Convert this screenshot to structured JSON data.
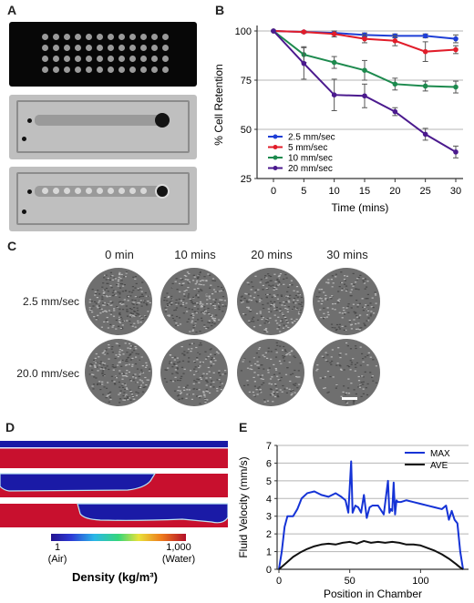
{
  "panels": {
    "a": "A",
    "b": "B",
    "c": "C",
    "d": "D",
    "e": "E"
  },
  "panel_c": {
    "columns": [
      "0 min",
      "10 mins",
      "20 mins",
      "30 mins"
    ],
    "rows": [
      "2.5 mm/sec",
      "20.0 mm/sec"
    ]
  },
  "panel_d": {
    "colorbar_min": "1",
    "colorbar_max": "1,000",
    "colorbar_min_label": "(Air)",
    "colorbar_max_label": "(Water)",
    "colorbar_title": "Density (kg/m³)",
    "colors": {
      "air": "#1a1aa6",
      "water": "#c8102e"
    }
  },
  "chart_data": [
    {
      "id": "B",
      "type": "line",
      "xlabel": "Time (mins)",
      "ylabel": "% Cell Retention",
      "x": [
        0,
        5,
        10,
        15,
        20,
        25,
        30
      ],
      "xlim": [
        0,
        30
      ],
      "ylim": [
        25,
        100
      ],
      "yticks": [
        25,
        50,
        75,
        100
      ],
      "grid": "horizontal",
      "legend_position": "bottom-left",
      "series": [
        {
          "name": "2.5 mm/sec",
          "color": "#1f3fd6",
          "values": [
            100,
            99.5,
            99,
            98,
            97.5,
            97.5,
            96
          ],
          "err": [
            0,
            0.5,
            1,
            1,
            1,
            1,
            2
          ]
        },
        {
          "name": "5 mm/sec",
          "color": "#e11d2a",
          "values": [
            100,
            99.5,
            98.5,
            96,
            95,
            89.5,
            90.5
          ],
          "err": [
            0,
            0.5,
            1.5,
            2,
            2.5,
            5,
            2
          ]
        },
        {
          "name": "10 mm/sec",
          "color": "#1d8a4e",
          "values": [
            100,
            88,
            84,
            80,
            73,
            72,
            71.5
          ],
          "err": [
            0,
            4,
            3,
            5,
            3,
            2.5,
            3
          ]
        },
        {
          "name": "20 mm/sec",
          "color": "#4b1a8e",
          "values": [
            100,
            83.5,
            67.5,
            67,
            59,
            47.5,
            38.5
          ],
          "err": [
            0,
            8,
            8,
            6,
            2,
            3,
            3
          ]
        }
      ]
    },
    {
      "id": "E",
      "type": "line",
      "xlabel": "Position in Chamber",
      "ylabel": "Fluid Velocity (mm/s)",
      "xlim": [
        0,
        130
      ],
      "ylim": [
        0,
        7
      ],
      "xticks": [
        0,
        50,
        100
      ],
      "yticks": [
        0,
        1,
        2,
        3,
        4,
        5,
        6,
        7
      ],
      "grid": "horizontal",
      "legend_position": "top-right",
      "series": [
        {
          "name": "MAX",
          "color": "#1533d6",
          "x": [
            0,
            2,
            4,
            6,
            8,
            10,
            13,
            16,
            20,
            25,
            30,
            35,
            40,
            44,
            47,
            49,
            51,
            52,
            54,
            56,
            58,
            60,
            62,
            64,
            66,
            70,
            74,
            77,
            78,
            79,
            80,
            81,
            82,
            83,
            84,
            86,
            90,
            95,
            100,
            105,
            110,
            115,
            118,
            120,
            122,
            124,
            126,
            128,
            130
          ],
          "values": [
            0,
            1,
            2.4,
            3,
            3,
            3,
            3.4,
            4,
            4.3,
            4.4,
            4.2,
            4.1,
            4.3,
            4.1,
            3.9,
            3.2,
            6.1,
            3.2,
            3.6,
            3.5,
            3.2,
            4.2,
            2.9,
            3.5,
            3.6,
            3.6,
            3.1,
            5,
            3.2,
            3.4,
            3.3,
            4.9,
            3.1,
            3.9,
            3.8,
            3.8,
            3.9,
            3.8,
            3.7,
            3.6,
            3.5,
            3.4,
            3.6,
            2.8,
            3.3,
            2.8,
            2.6,
            1,
            0
          ]
        },
        {
          "name": "AVE",
          "color": "#111111",
          "x": [
            0,
            5,
            10,
            15,
            20,
            25,
            30,
            35,
            40,
            45,
            50,
            55,
            60,
            65,
            70,
            75,
            80,
            85,
            90,
            95,
            100,
            105,
            110,
            115,
            120,
            125,
            128,
            130
          ],
          "values": [
            0,
            0.35,
            0.7,
            0.95,
            1.15,
            1.3,
            1.4,
            1.45,
            1.4,
            1.5,
            1.55,
            1.45,
            1.6,
            1.5,
            1.55,
            1.5,
            1.55,
            1.5,
            1.4,
            1.4,
            1.35,
            1.2,
            1.05,
            0.85,
            0.6,
            0.3,
            0.1,
            0
          ]
        }
      ]
    }
  ]
}
